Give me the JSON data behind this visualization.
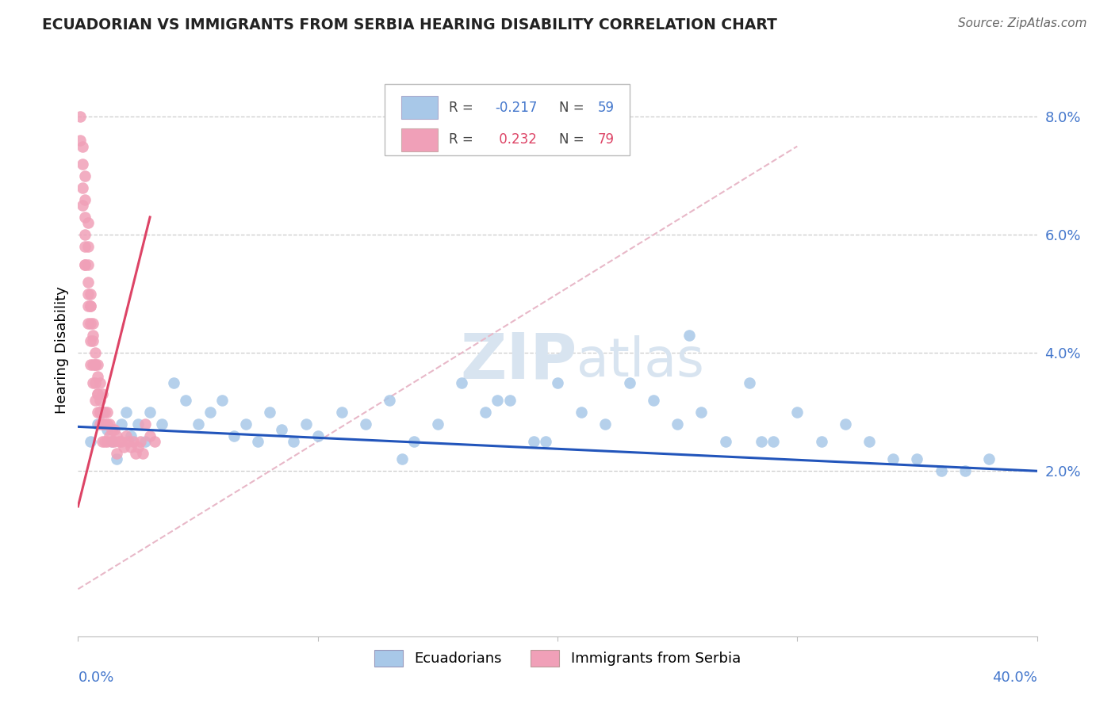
{
  "title": "ECUADORIAN VS IMMIGRANTS FROM SERBIA HEARING DISABILITY CORRELATION CHART",
  "source": "Source: ZipAtlas.com",
  "ylabel": "Hearing Disability",
  "y_ticks": [
    0.02,
    0.04,
    0.06,
    0.08
  ],
  "y_tick_labels": [
    "2.0%",
    "4.0%",
    "6.0%",
    "8.0%"
  ],
  "x_min": 0.0,
  "x_max": 0.4,
  "y_min": -0.008,
  "y_max": 0.089,
  "r_blue": -0.217,
  "n_blue": 59,
  "r_pink": 0.232,
  "n_pink": 79,
  "blue_color": "#a8c8e8",
  "pink_color": "#f0a0b8",
  "blue_line_color": "#2255bb",
  "pink_line_color": "#dd4466",
  "diagonal_color": "#e8b8c8",
  "watermark_color": "#d8e4f0",
  "legend_label_blue": "Ecuadorians",
  "legend_label_pink": "Immigrants from Serbia",
  "blue_line_x": [
    0.0,
    0.4
  ],
  "blue_line_y": [
    0.0275,
    0.02
  ],
  "pink_line_x": [
    0.0,
    0.03
  ],
  "pink_line_y": [
    0.014,
    0.063
  ],
  "diag_line_x": [
    0.0,
    0.3
  ],
  "diag_line_y": [
    0.0,
    0.075
  ],
  "blue_scatter_x": [
    0.005,
    0.008,
    0.01,
    0.012,
    0.014,
    0.016,
    0.018,
    0.02,
    0.022,
    0.025,
    0.028,
    0.03,
    0.035,
    0.04,
    0.045,
    0.05,
    0.055,
    0.06,
    0.065,
    0.07,
    0.075,
    0.08,
    0.085,
    0.09,
    0.095,
    0.1,
    0.11,
    0.12,
    0.13,
    0.14,
    0.15,
    0.16,
    0.17,
    0.18,
    0.19,
    0.2,
    0.21,
    0.22,
    0.23,
    0.24,
    0.25,
    0.26,
    0.27,
    0.28,
    0.29,
    0.3,
    0.31,
    0.32,
    0.33,
    0.34,
    0.35,
    0.36,
    0.37,
    0.38,
    0.255,
    0.175,
    0.135,
    0.285,
    0.195
  ],
  "blue_scatter_y": [
    0.025,
    0.028,
    0.03,
    0.027,
    0.025,
    0.022,
    0.028,
    0.03,
    0.026,
    0.028,
    0.025,
    0.03,
    0.028,
    0.035,
    0.032,
    0.028,
    0.03,
    0.032,
    0.026,
    0.028,
    0.025,
    0.03,
    0.027,
    0.025,
    0.028,
    0.026,
    0.03,
    0.028,
    0.032,
    0.025,
    0.028,
    0.035,
    0.03,
    0.032,
    0.025,
    0.035,
    0.03,
    0.028,
    0.035,
    0.032,
    0.028,
    0.03,
    0.025,
    0.035,
    0.025,
    0.03,
    0.025,
    0.028,
    0.025,
    0.022,
    0.022,
    0.02,
    0.02,
    0.022,
    0.043,
    0.032,
    0.022,
    0.025,
    0.025
  ],
  "pink_scatter_x": [
    0.001,
    0.001,
    0.002,
    0.002,
    0.002,
    0.003,
    0.003,
    0.003,
    0.003,
    0.003,
    0.003,
    0.004,
    0.004,
    0.004,
    0.004,
    0.004,
    0.004,
    0.005,
    0.005,
    0.005,
    0.005,
    0.005,
    0.006,
    0.006,
    0.006,
    0.006,
    0.007,
    0.007,
    0.007,
    0.007,
    0.008,
    0.008,
    0.008,
    0.008,
    0.009,
    0.009,
    0.009,
    0.009,
    0.01,
    0.01,
    0.01,
    0.01,
    0.011,
    0.011,
    0.012,
    0.012,
    0.012,
    0.013,
    0.013,
    0.014,
    0.014,
    0.015,
    0.015,
    0.016,
    0.016,
    0.017,
    0.018,
    0.019,
    0.02,
    0.021,
    0.022,
    0.023,
    0.024,
    0.025,
    0.026,
    0.027,
    0.028,
    0.03,
    0.032,
    0.002,
    0.003,
    0.004,
    0.005,
    0.006,
    0.007,
    0.008,
    0.009,
    0.01,
    0.011
  ],
  "pink_scatter_y": [
    0.08,
    0.076,
    0.075,
    0.072,
    0.068,
    0.07,
    0.066,
    0.063,
    0.06,
    0.058,
    0.055,
    0.062,
    0.058,
    0.055,
    0.052,
    0.048,
    0.045,
    0.05,
    0.048,
    0.045,
    0.042,
    0.038,
    0.045,
    0.042,
    0.038,
    0.035,
    0.04,
    0.038,
    0.035,
    0.032,
    0.038,
    0.036,
    0.033,
    0.03,
    0.035,
    0.032,
    0.03,
    0.028,
    0.033,
    0.03,
    0.028,
    0.025,
    0.03,
    0.028,
    0.03,
    0.028,
    0.025,
    0.028,
    0.026,
    0.027,
    0.025,
    0.027,
    0.025,
    0.026,
    0.023,
    0.025,
    0.025,
    0.024,
    0.026,
    0.025,
    0.024,
    0.025,
    0.023,
    0.024,
    0.025,
    0.023,
    0.028,
    0.026,
    0.025,
    0.065,
    0.055,
    0.05,
    0.048,
    0.043,
    0.038,
    0.033,
    0.03,
    0.028,
    0.025
  ]
}
